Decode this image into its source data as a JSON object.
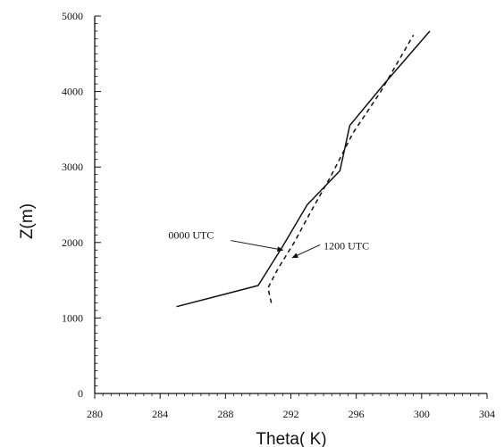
{
  "chart_data": {
    "type": "line",
    "title": "",
    "xlabel": "Theta( K)",
    "ylabel": "Z(m)",
    "xlim": [
      280,
      304
    ],
    "ylim": [
      0,
      5000
    ],
    "xticks": [
      280,
      284,
      288,
      292,
      296,
      300,
      304
    ],
    "yticks": [
      0,
      1000,
      2000,
      3000,
      4000,
      5000
    ],
    "grid": false,
    "series": [
      {
        "name": "0000 UTC",
        "style": "solid",
        "color": "#111111",
        "x": [
          285,
          290,
          291.5,
          293,
          295,
          295.6,
          297.7,
          300.5
        ],
        "y": [
          1150,
          1430,
          1950,
          2500,
          2950,
          3550,
          4100,
          4800
        ]
      },
      {
        "name": "1200 UTC",
        "style": "dashed",
        "color": "#111111",
        "x": [
          290.8,
          290.6,
          291.2,
          292.2,
          293.2,
          294.5,
          295.8,
          297.5,
          299.5
        ],
        "y": [
          1200,
          1400,
          1650,
          2000,
          2400,
          2900,
          3450,
          4000,
          4750
        ]
      }
    ],
    "annotations": [
      {
        "text": "0000 UTC",
        "x": 284.5,
        "y": 2050
      },
      {
        "text": "1200 UTC",
        "x": 294,
        "y": 1910
      }
    ]
  }
}
